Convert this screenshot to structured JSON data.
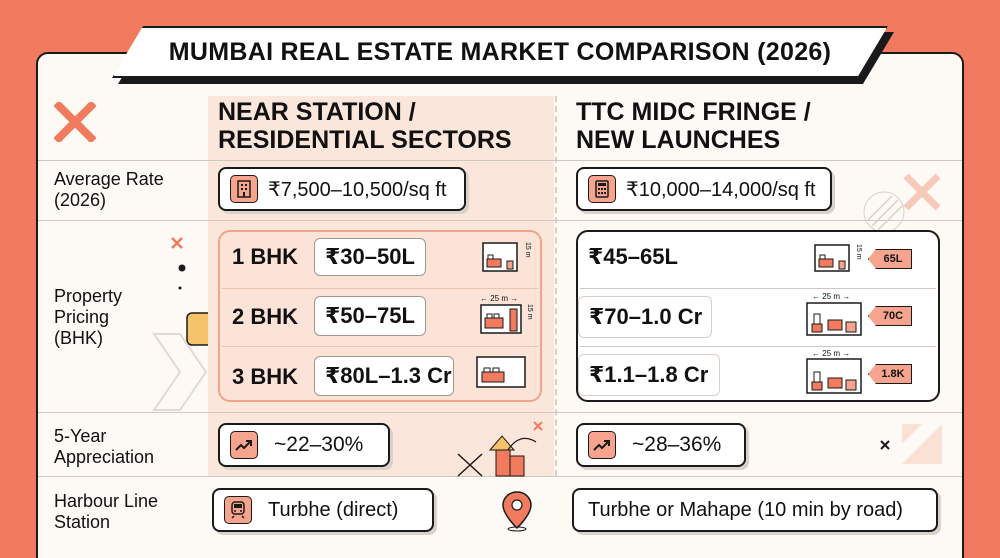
{
  "title": "MUMBAI REAL ESTATE MARKET COMPARISON (2026)",
  "columns": {
    "left": {
      "line1": "NEAR STATION /",
      "line2": "RESIDENTIAL SECTORS"
    },
    "right": {
      "line1": "TTC MIDC FRINGE /",
      "line2": "NEW LAUNCHES"
    }
  },
  "rows": {
    "rate": {
      "label1": "Average Rate",
      "label2": "(2026)",
      "left": "₹7,500–10,500/sq ft",
      "right": "₹10,000–14,000/sq ft"
    },
    "pricing": {
      "label1": "Property",
      "label2": "Pricing",
      "label3": "(BHK)",
      "left": [
        {
          "type": "1 BHK",
          "price": "₹30–50L"
        },
        {
          "type": "2 BHK",
          "price": "₹50–75L"
        },
        {
          "type": "3 BHK",
          "price": "₹80L–1.3 Cr"
        }
      ],
      "right": [
        {
          "price": "₹45–65L",
          "tag": "65L"
        },
        {
          "price": "₹70–1.0 Cr",
          "tag": "70C"
        },
        {
          "price": "₹1.1–1.8 Cr",
          "tag": "1.8K"
        }
      ],
      "dim_width": "25 m",
      "dim_height": "15 m"
    },
    "appreciation": {
      "label1": "5-Year",
      "label2": "Appreciation",
      "left": "~22–30%",
      "right": "~28–36%"
    },
    "station": {
      "label1": "Harbour Line",
      "label2": "Station",
      "left": "Turbhe (direct)",
      "right": "Turbhe or Mahape (10 min by road)"
    }
  },
  "colors": {
    "accent": "#f27a5e",
    "soft": "#f7a48e",
    "tint": "#fbe6dc"
  }
}
